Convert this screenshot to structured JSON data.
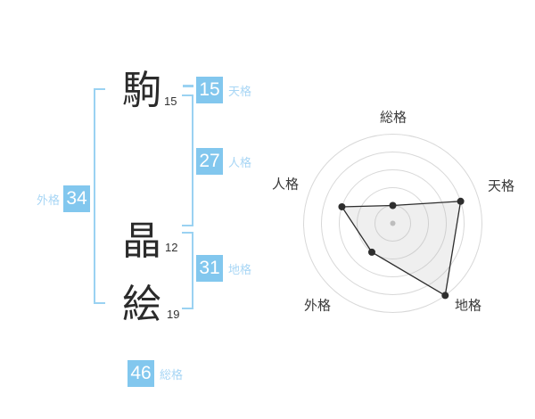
{
  "name_analysis": {
    "characters": [
      {
        "char": "駒",
        "strokes": "15"
      },
      {
        "char": "晶",
        "strokes": "12"
      },
      {
        "char": "絵",
        "strokes": "19"
      }
    ],
    "scores": [
      {
        "id": "tenkaku",
        "value": "15",
        "label": "天格"
      },
      {
        "id": "jinkaku",
        "value": "27",
        "label": "人格"
      },
      {
        "id": "chikaku",
        "value": "31",
        "label": "地格"
      },
      {
        "id": "gaikaku",
        "value": "34",
        "label": "外格"
      },
      {
        "id": "soukaku",
        "value": "46",
        "label": "総格"
      }
    ],
    "colors": {
      "badge_bg": "#82c7ee",
      "badge_text": "#ffffff",
      "label_text": "#a8d6f5",
      "bracket": "#9ad2f2"
    }
  },
  "chart_data": {
    "type": "radar",
    "title": "",
    "axes": [
      "総格",
      "天格",
      "地格",
      "外格",
      "人格"
    ],
    "angles_deg": [
      90,
      18,
      -54,
      -126,
      162
    ],
    "ring_values": [
      1,
      4,
      5,
      2,
      3
    ],
    "max_rings": 5,
    "grid": "concentric-circles",
    "grid_rings": 5,
    "legend": "none",
    "colors": {
      "grid": "#d8d8d8",
      "polygon_stroke": "#2e2e2e",
      "polygon_fill": "rgba(180,180,180,0.22)",
      "point": "#2e2e2e",
      "center_dot": "#bdbdbd"
    }
  }
}
